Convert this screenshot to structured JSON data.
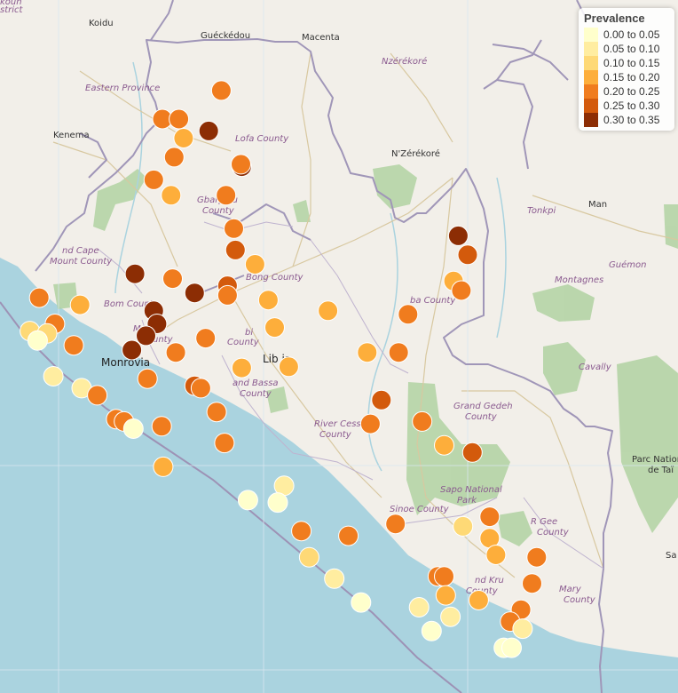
{
  "legend": {
    "title": "Prevalence",
    "classes": [
      {
        "label": "0.00 to 0.05",
        "color": "#ffffcc"
      },
      {
        "label": "0.05 to 0.10",
        "color": "#ffeda0"
      },
      {
        "label": "0.10 to 0.15",
        "color": "#fed976"
      },
      {
        "label": "0.15 to 0.20",
        "color": "#fdae3b"
      },
      {
        "label": "0.20 to 0.25",
        "color": "#f07c1e"
      },
      {
        "label": "0.25 to 0.30",
        "color": "#d35a0c"
      },
      {
        "label": "0.30 to 0.35",
        "color": "#8c2d04"
      }
    ]
  },
  "map_labels": {
    "koidu": "Koidu",
    "gueckedou": "Guéckédou",
    "macenta": "Macenta",
    "nzerekore_region": "Nzérékoré",
    "eastern_province": "Eastern Province",
    "kenema": "Kenema",
    "lofa_county": "Lofa County",
    "nzerekore_city": "N'Zérékoré",
    "tonkpi": "Tonkpi",
    "man": "Man",
    "gbarpolu_1": "Gbarpolu",
    "gbarpolu_2": "County",
    "grand_cape_1": "nd Cape",
    "grand_cape_2": "Mount County",
    "gueman": "Guémon",
    "bong_county": "Bong County",
    "montagnes": "Montagnes",
    "nimba_county": "ba County",
    "bomi_county": "Bom County",
    "montserrado_1": "Montse",
    "montserrado_2": "unty",
    "margibi_1": "bi",
    "margibi_2": "County",
    "liberia": "Lib  ia",
    "monrovia": "Monrovia",
    "cavally": "Cavally",
    "grand_bassa_1": "and Bassa",
    "grand_bassa_2": "County",
    "grand_gedeh_1": "Grand Gedeh",
    "grand_gedeh_2": "County",
    "rivercess_1": "River Cess",
    "rivercess_2": "County",
    "tai_1": "Parc Nation",
    "tai_2": "de Taï",
    "sapo_1": "Sapo National",
    "sapo_2": "Park",
    "sinoe_county": "Sinoe County",
    "river_gee_1": "R  Gee",
    "river_gee_2": "County",
    "grand_kru_1": "nd Kru",
    "grand_kru_2": "County",
    "maryland_1": "Mary",
    "maryland_2": "County",
    "sa": "Sa",
    "corner_1": "koun",
    "corner_2": "strict"
  },
  "sites": [
    {
      "lat": 8.54,
      "lon": -9.96,
      "prevalence": 0.22
    },
    {
      "lat": 8.42,
      "lon": -10.335,
      "prevalence": 0.22
    },
    {
      "lat": 8.42,
      "lon": -10.23,
      "prevalence": 0.22
    },
    {
      "lat": 8.37,
      "lon": -10.04,
      "prevalence": 0.31
    },
    {
      "lat": 8.34,
      "lon": -10.2,
      "prevalence": 0.17
    },
    {
      "lat": 8.26,
      "lon": -10.26,
      "prevalence": 0.22
    },
    {
      "lat": 8.22,
      "lon": -9.83,
      "prevalence": 0.32
    },
    {
      "lat": 8.23,
      "lon": -9.835,
      "prevalence": 0.23
    },
    {
      "lat": 8.165,
      "lon": -10.39,
      "prevalence": 0.22
    },
    {
      "lat": 8.1,
      "lon": -10.28,
      "prevalence": 0.17
    },
    {
      "lat": 8.1,
      "lon": -9.93,
      "prevalence": 0.22
    },
    {
      "lat": 7.96,
      "lon": -9.88,
      "prevalence": 0.22
    },
    {
      "lat": 7.87,
      "lon": -9.87,
      "prevalence": 0.28
    },
    {
      "lat": 7.93,
      "lon": -8.45,
      "prevalence": 0.32
    },
    {
      "lat": 7.85,
      "lon": -8.39,
      "prevalence": 0.27
    },
    {
      "lat": 7.81,
      "lon": -9.745,
      "prevalence": 0.17
    },
    {
      "lat": 7.77,
      "lon": -10.51,
      "prevalence": 0.34
    },
    {
      "lat": 7.75,
      "lon": -10.27,
      "prevalence": 0.22
    },
    {
      "lat": 7.74,
      "lon": -8.48,
      "prevalence": 0.17
    },
    {
      "lat": 7.72,
      "lon": -9.92,
      "prevalence": 0.27
    },
    {
      "lat": 7.7,
      "lon": -8.43,
      "prevalence": 0.22
    },
    {
      "lat": 7.69,
      "lon": -10.13,
      "prevalence": 0.32
    },
    {
      "lat": 7.68,
      "lon": -9.92,
      "prevalence": 0.22
    },
    {
      "lat": 7.67,
      "lon": -11.12,
      "prevalence": 0.22
    },
    {
      "lat": 7.66,
      "lon": -9.66,
      "prevalence": 0.17
    },
    {
      "lat": 7.64,
      "lon": -10.86,
      "prevalence": 0.17
    },
    {
      "lat": 7.615,
      "lon": -10.39,
      "prevalence": 0.32
    },
    {
      "lat": 7.615,
      "lon": -9.28,
      "prevalence": 0.17
    },
    {
      "lat": 7.6,
      "lon": -8.77,
      "prevalence": 0.22
    },
    {
      "lat": 7.56,
      "lon": -10.37,
      "prevalence": 0.33
    },
    {
      "lat": 7.56,
      "lon": -11.02,
      "prevalence": 0.21
    },
    {
      "lat": 7.545,
      "lon": -9.62,
      "prevalence": 0.17
    },
    {
      "lat": 7.53,
      "lon": -11.18,
      "prevalence": 0.13
    },
    {
      "lat": 7.52,
      "lon": -11.07,
      "prevalence": 0.14
    },
    {
      "lat": 7.51,
      "lon": -10.44,
      "prevalence": 0.33
    },
    {
      "lat": 7.5,
      "lon": -10.06,
      "prevalence": 0.22
    },
    {
      "lat": 7.49,
      "lon": -11.13,
      "prevalence": 0.03
    },
    {
      "lat": 7.47,
      "lon": -10.9,
      "prevalence": 0.22
    },
    {
      "lat": 7.45,
      "lon": -10.53,
      "prevalence": 0.34
    },
    {
      "lat": 7.44,
      "lon": -10.25,
      "prevalence": 0.22
    },
    {
      "lat": 7.44,
      "lon": -9.03,
      "prevalence": 0.17
    },
    {
      "lat": 7.44,
      "lon": -8.83,
      "prevalence": 0.22
    },
    {
      "lat": 7.38,
      "lon": -9.53,
      "prevalence": 0.17
    },
    {
      "lat": 7.375,
      "lon": -9.83,
      "prevalence": 0.17
    },
    {
      "lat": 7.34,
      "lon": -11.03,
      "prevalence": 0.08
    },
    {
      "lat": 7.33,
      "lon": -10.43,
      "prevalence": 0.22
    },
    {
      "lat": 7.3,
      "lon": -10.13,
      "prevalence": 0.3
    },
    {
      "lat": 7.29,
      "lon": -10.09,
      "prevalence": 0.22
    },
    {
      "lat": 7.29,
      "lon": -10.85,
      "prevalence": 0.06
    },
    {
      "lat": 7.26,
      "lon": -10.75,
      "prevalence": 0.22
    },
    {
      "lat": 7.24,
      "lon": -8.94,
      "prevalence": 0.3
    },
    {
      "lat": 7.19,
      "lon": -9.99,
      "prevalence": 0.22
    },
    {
      "lat": 7.16,
      "lon": -10.63,
      "prevalence": 0.24
    },
    {
      "lat": 7.15,
      "lon": -10.58,
      "prevalence": 0.23
    },
    {
      "lat": 7.15,
      "lon": -8.68,
      "prevalence": 0.22
    },
    {
      "lat": 7.14,
      "lon": -9.01,
      "prevalence": 0.22
    },
    {
      "lat": 7.13,
      "lon": -10.34,
      "prevalence": 0.22
    },
    {
      "lat": 7.12,
      "lon": -10.52,
      "prevalence": 0.03
    },
    {
      "lat": 7.06,
      "lon": -9.94,
      "prevalence": 0.22
    },
    {
      "lat": 7.05,
      "lon": -8.54,
      "prevalence": 0.17
    },
    {
      "lat": 7.02,
      "lon": -8.36,
      "prevalence": 0.28
    },
    {
      "lat": 6.96,
      "lon": -10.33,
      "prevalence": 0.17
    },
    {
      "lat": 6.88,
      "lon": -9.56,
      "prevalence": 0.05
    },
    {
      "lat": 6.82,
      "lon": -9.79,
      "prevalence": 0.03
    },
    {
      "lat": 6.81,
      "lon": -9.6,
      "prevalence": 0.03
    },
    {
      "lat": 6.75,
      "lon": -8.25,
      "prevalence": 0.22
    },
    {
      "lat": 6.72,
      "lon": -8.85,
      "prevalence": 0.22
    },
    {
      "lat": 6.71,
      "lon": -8.42,
      "prevalence": 0.13
    },
    {
      "lat": 6.69,
      "lon": -9.45,
      "prevalence": 0.22
    },
    {
      "lat": 6.67,
      "lon": -9.15,
      "prevalence": 0.22
    },
    {
      "lat": 6.66,
      "lon": -8.25,
      "prevalence": 0.17
    },
    {
      "lat": 6.59,
      "lon": -8.21,
      "prevalence": 0.17
    },
    {
      "lat": 6.58,
      "lon": -7.95,
      "prevalence": 0.22
    },
    {
      "lat": 6.58,
      "lon": -9.4,
      "prevalence": 0.1
    },
    {
      "lat": 6.5,
      "lon": -8.58,
      "prevalence": 0.22
    },
    {
      "lat": 6.5,
      "lon": -8.54,
      "prevalence": 0.22
    },
    {
      "lat": 6.49,
      "lon": -9.24,
      "prevalence": 0.08
    },
    {
      "lat": 6.47,
      "lon": -7.98,
      "prevalence": 0.22
    },
    {
      "lat": 6.42,
      "lon": -8.53,
      "prevalence": 0.17
    },
    {
      "lat": 6.4,
      "lon": -8.32,
      "prevalence": 0.17
    },
    {
      "lat": 6.39,
      "lon": -9.07,
      "prevalence": 0.03
    },
    {
      "lat": 6.37,
      "lon": -8.7,
      "prevalence": 0.07
    },
    {
      "lat": 6.36,
      "lon": -8.05,
      "prevalence": 0.22
    },
    {
      "lat": 6.33,
      "lon": -8.5,
      "prevalence": 0.09
    },
    {
      "lat": 6.31,
      "lon": -8.12,
      "prevalence": 0.22
    },
    {
      "lat": 6.28,
      "lon": -8.04,
      "prevalence": 0.08
    },
    {
      "lat": 6.27,
      "lon": -8.62,
      "prevalence": 0.03
    },
    {
      "lat": 6.2,
      "lon": -8.16,
      "prevalence": 0.03
    },
    {
      "lat": 6.2,
      "lon": -8.11,
      "prevalence": 0.03
    }
  ]
}
